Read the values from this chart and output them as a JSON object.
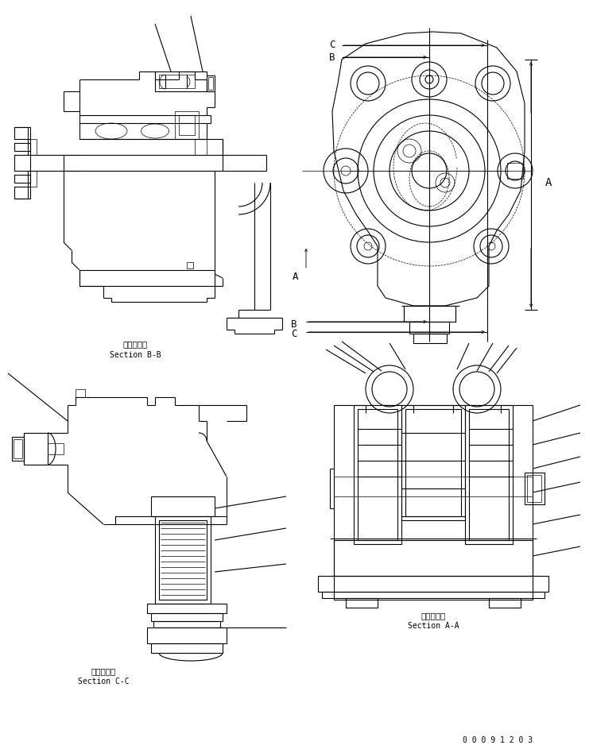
{
  "bg_color": "#ffffff",
  "line_color": "#000000",
  "fig_width": 7.46,
  "fig_height": 9.43,
  "dpi": 100,
  "labels": {
    "section_bb_jp": "断面Ｂ－Ｂ",
    "section_bb_en": "Section B-B",
    "section_cc_jp": "断面Ｃ－Ｃ",
    "section_cc_en": "Section C-C",
    "section_aa_jp": "断面Ａ－Ａ",
    "section_aa_en": "Section A-A",
    "part_number": "0 0 0 9 1 2 0 3",
    "label_A": "A",
    "label_B": "B",
    "label_C": "C"
  },
  "font_sizes": {
    "section_label_jp": 7.5,
    "section_label_en": 7,
    "dimension_label": 9,
    "part_number": 7
  }
}
